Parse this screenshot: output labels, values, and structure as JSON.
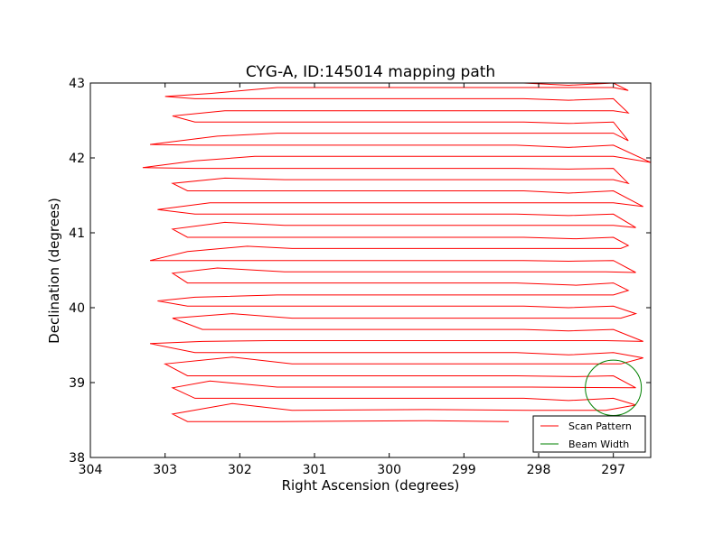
{
  "chart_data": {
    "type": "line",
    "title": "CYG-A, ID:145014 mapping path",
    "xlabel": "Right Ascension (degrees)",
    "ylabel": "Declination (degrees)",
    "xlim": [
      304,
      296.5
    ],
    "ylim": [
      38,
      43
    ],
    "x_ticks": [
      304,
      303,
      302,
      301,
      300,
      299,
      298,
      297
    ],
    "x_tick_labels": [
      "304",
      "303",
      "302",
      "301",
      "300",
      "299",
      "298",
      "297"
    ],
    "y_ticks": [
      38,
      39,
      40,
      41,
      42,
      43
    ],
    "y_tick_labels": [
      "38",
      "39",
      "40",
      "41",
      "42",
      "43"
    ],
    "grid": false,
    "legend": {
      "placement": "bottom-right",
      "entries": [
        {
          "label": "Scan Pattern",
          "color": "#ff0000"
        },
        {
          "label": "Beam Width",
          "color": "#008000"
        }
      ]
    },
    "series": [
      {
        "name": "Scan Pattern",
        "color": "#ff0000",
        "description": "boustrophedon raster scan rows in declination",
        "rows_dec": [
          38.48,
          38.63,
          38.79,
          38.94,
          39.09,
          39.25,
          39.4,
          39.56,
          39.71,
          39.86,
          40.02,
          40.17,
          40.33,
          40.48,
          40.63,
          40.79,
          40.94,
          41.1,
          41.25,
          41.4,
          41.56,
          41.71,
          41.86,
          42.02,
          42.17,
          42.33,
          42.48,
          42.63,
          42.79,
          42.94
        ],
        "points": [
          [
            298.4,
            38.48
          ],
          [
            299.5,
            38.49
          ],
          [
            301.5,
            38.48
          ],
          [
            302.7,
            38.48
          ],
          [
            302.9,
            38.58
          ],
          [
            302.1,
            38.72
          ],
          [
            301.3,
            38.63
          ],
          [
            299.5,
            38.64
          ],
          [
            298.1,
            38.63
          ],
          [
            297.1,
            38.63
          ],
          [
            296.7,
            38.7
          ],
          [
            297.0,
            38.79
          ],
          [
            297.6,
            38.76
          ],
          [
            298.2,
            38.79
          ],
          [
            299.3,
            38.79
          ],
          [
            301.5,
            38.79
          ],
          [
            302.6,
            38.79
          ],
          [
            302.9,
            38.93
          ],
          [
            302.4,
            39.02
          ],
          [
            301.5,
            38.94
          ],
          [
            299.6,
            38.94
          ],
          [
            298.1,
            38.94
          ],
          [
            296.7,
            38.93
          ],
          [
            297.0,
            39.09
          ],
          [
            297.5,
            39.08
          ],
          [
            298.3,
            39.09
          ],
          [
            299.4,
            39.09
          ],
          [
            301.4,
            39.09
          ],
          [
            302.7,
            39.09
          ],
          [
            303.0,
            39.25
          ],
          [
            302.1,
            39.34
          ],
          [
            301.3,
            39.25
          ],
          [
            299.6,
            39.25
          ],
          [
            298.1,
            39.25
          ],
          [
            296.9,
            39.25
          ],
          [
            296.6,
            39.33
          ],
          [
            297.0,
            39.4
          ],
          [
            297.6,
            39.37
          ],
          [
            298.3,
            39.4
          ],
          [
            299.3,
            39.4
          ],
          [
            301.4,
            39.4
          ],
          [
            302.6,
            39.4
          ],
          [
            303.2,
            39.52
          ],
          [
            302.5,
            39.55
          ],
          [
            301.6,
            39.56
          ],
          [
            299.6,
            39.56
          ],
          [
            298.1,
            39.56
          ],
          [
            297.1,
            39.56
          ],
          [
            296.6,
            39.55
          ],
          [
            297.0,
            39.71
          ],
          [
            297.6,
            39.69
          ],
          [
            298.2,
            39.71
          ],
          [
            299.4,
            39.71
          ],
          [
            301.5,
            39.71
          ],
          [
            302.5,
            39.71
          ],
          [
            302.9,
            39.86
          ],
          [
            302.1,
            39.92
          ],
          [
            301.3,
            39.86
          ],
          [
            299.6,
            39.86
          ],
          [
            298.1,
            39.86
          ],
          [
            296.9,
            39.86
          ],
          [
            296.7,
            39.92
          ],
          [
            297.0,
            40.02
          ],
          [
            297.6,
            40.0
          ],
          [
            298.2,
            40.02
          ],
          [
            299.3,
            40.02
          ],
          [
            301.4,
            40.02
          ],
          [
            302.7,
            40.02
          ],
          [
            303.1,
            40.09
          ],
          [
            302.6,
            40.14
          ],
          [
            301.5,
            40.17
          ],
          [
            299.6,
            40.17
          ],
          [
            298.1,
            40.17
          ],
          [
            297.0,
            40.17
          ],
          [
            296.8,
            40.23
          ],
          [
            297.0,
            40.33
          ],
          [
            297.5,
            40.3
          ],
          [
            298.3,
            40.33
          ],
          [
            299.4,
            40.33
          ],
          [
            301.5,
            40.33
          ],
          [
            302.7,
            40.33
          ],
          [
            302.9,
            40.46
          ],
          [
            302.3,
            40.53
          ],
          [
            301.4,
            40.48
          ],
          [
            299.6,
            40.48
          ],
          [
            298.1,
            40.48
          ],
          [
            297.1,
            40.48
          ],
          [
            296.7,
            40.47
          ],
          [
            297.0,
            40.63
          ],
          [
            297.6,
            40.62
          ],
          [
            298.2,
            40.63
          ],
          [
            299.4,
            40.63
          ],
          [
            301.5,
            40.63
          ],
          [
            302.6,
            40.63
          ],
          [
            303.2,
            40.63
          ],
          [
            302.7,
            40.75
          ],
          [
            301.9,
            40.82
          ],
          [
            301.3,
            40.79
          ],
          [
            299.6,
            40.79
          ],
          [
            298.1,
            40.79
          ],
          [
            296.9,
            40.79
          ],
          [
            296.8,
            40.83
          ],
          [
            297.0,
            40.94
          ],
          [
            297.5,
            40.92
          ],
          [
            298.2,
            40.94
          ],
          [
            299.4,
            40.94
          ],
          [
            301.4,
            40.94
          ],
          [
            302.7,
            40.94
          ],
          [
            302.9,
            41.05
          ],
          [
            302.2,
            41.14
          ],
          [
            301.4,
            41.1
          ],
          [
            299.6,
            41.1
          ],
          [
            298.1,
            41.1
          ],
          [
            297.0,
            41.1
          ],
          [
            296.7,
            41.07
          ],
          [
            297.0,
            41.25
          ],
          [
            297.6,
            41.23
          ],
          [
            298.3,
            41.25
          ],
          [
            299.4,
            41.25
          ],
          [
            301.5,
            41.25
          ],
          [
            302.6,
            41.25
          ],
          [
            303.1,
            41.31
          ],
          [
            302.4,
            41.4
          ],
          [
            301.4,
            41.4
          ],
          [
            299.6,
            41.4
          ],
          [
            298.1,
            41.4
          ],
          [
            297.0,
            41.4
          ],
          [
            296.6,
            41.35
          ],
          [
            297.0,
            41.56
          ],
          [
            297.6,
            41.53
          ],
          [
            298.2,
            41.56
          ],
          [
            299.3,
            41.56
          ],
          [
            301.5,
            41.56
          ],
          [
            302.7,
            41.56
          ],
          [
            302.9,
            41.66
          ],
          [
            302.2,
            41.73
          ],
          [
            301.4,
            41.71
          ],
          [
            299.6,
            41.71
          ],
          [
            298.1,
            41.71
          ],
          [
            297.0,
            41.71
          ],
          [
            296.8,
            41.66
          ],
          [
            297.0,
            41.86
          ],
          [
            297.6,
            41.85
          ],
          [
            298.3,
            41.86
          ],
          [
            299.4,
            41.86
          ],
          [
            301.4,
            41.86
          ],
          [
            302.6,
            41.86
          ],
          [
            303.3,
            41.87
          ],
          [
            302.6,
            41.96
          ],
          [
            301.8,
            42.02
          ],
          [
            301.3,
            42.02
          ],
          [
            299.6,
            42.02
          ],
          [
            298.1,
            42.02
          ],
          [
            297.0,
            42.02
          ],
          [
            296.5,
            41.94
          ],
          [
            297.0,
            42.17
          ],
          [
            297.6,
            42.14
          ],
          [
            298.3,
            42.17
          ],
          [
            299.4,
            42.17
          ],
          [
            301.4,
            42.17
          ],
          [
            302.6,
            42.17
          ],
          [
            303.2,
            42.18
          ],
          [
            302.3,
            42.29
          ],
          [
            301.5,
            42.33
          ],
          [
            299.6,
            42.33
          ],
          [
            298.1,
            42.33
          ],
          [
            297.0,
            42.33
          ],
          [
            296.8,
            42.23
          ],
          [
            297.0,
            42.48
          ],
          [
            297.6,
            42.46
          ],
          [
            298.2,
            42.48
          ],
          [
            299.4,
            42.48
          ],
          [
            301.4,
            42.48
          ],
          [
            302.6,
            42.48
          ],
          [
            302.9,
            42.56
          ],
          [
            302.2,
            42.63
          ],
          [
            301.4,
            42.63
          ],
          [
            299.6,
            42.63
          ],
          [
            298.1,
            42.63
          ],
          [
            297.0,
            42.63
          ],
          [
            296.8,
            42.6
          ],
          [
            297.0,
            42.79
          ],
          [
            297.6,
            42.77
          ],
          [
            298.2,
            42.79
          ],
          [
            299.4,
            42.79
          ],
          [
            301.4,
            42.79
          ],
          [
            302.6,
            42.79
          ],
          [
            303.0,
            42.82
          ],
          [
            302.4,
            42.86
          ],
          [
            301.5,
            42.94
          ],
          [
            299.6,
            42.94
          ],
          [
            298.1,
            42.94
          ],
          [
            297.0,
            42.94
          ],
          [
            296.8,
            42.9
          ],
          [
            297.0,
            43.0
          ],
          [
            297.6,
            42.97
          ],
          [
            298.2,
            43.0
          ],
          [
            299.4,
            43.0
          ],
          [
            302.4,
            43.0
          ]
        ]
      },
      {
        "name": "Beam Width",
        "color": "#008000",
        "type": "circle",
        "center": [
          297.0,
          38.93
        ],
        "radius_ra": 0.375,
        "radius_dec": 0.37
      }
    ]
  }
}
